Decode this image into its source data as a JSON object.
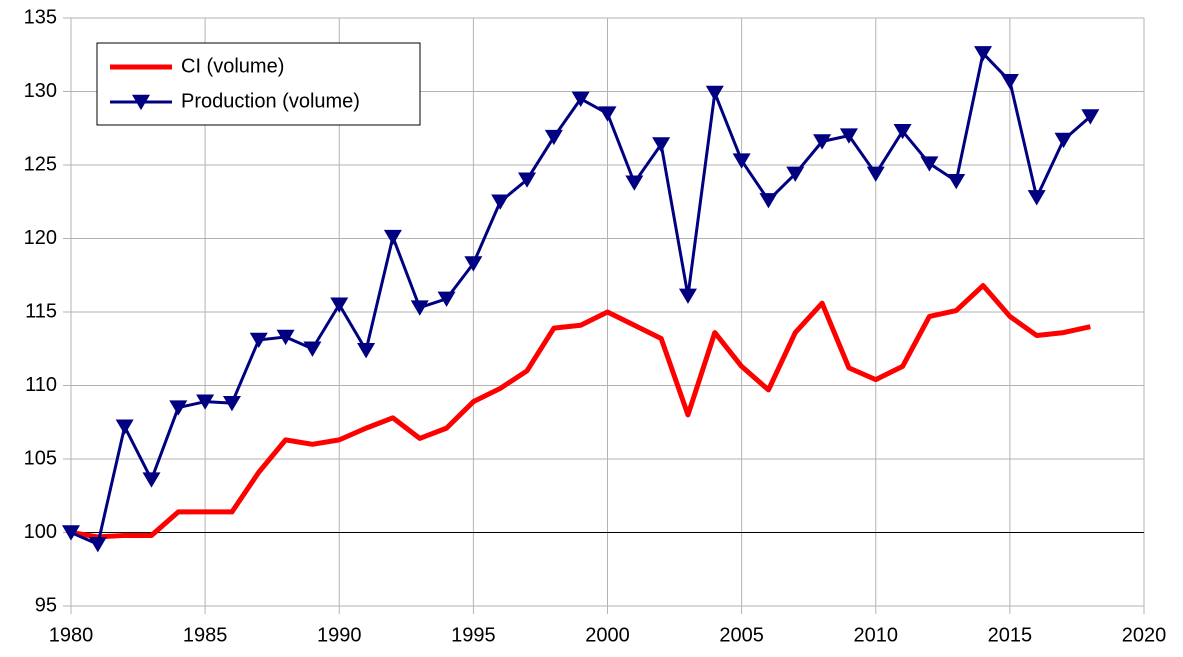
{
  "chart_data": {
    "type": "line",
    "x": [
      1980,
      1981,
      1982,
      1983,
      1984,
      1985,
      1986,
      1987,
      1988,
      1989,
      1990,
      1991,
      1992,
      1993,
      1994,
      1995,
      1996,
      1997,
      1998,
      1999,
      2000,
      2001,
      2002,
      2003,
      2004,
      2005,
      2006,
      2007,
      2008,
      2009,
      2010,
      2011,
      2012,
      2013,
      2014,
      2015,
      2016,
      2017,
      2018
    ],
    "series": [
      {
        "name": "CI (volume)",
        "color": "#ff0000",
        "marker": "none",
        "values": [
          100,
          99.7,
          99.8,
          99.8,
          101.4,
          101.4,
          101.4,
          104.1,
          106.3,
          106,
          106.3,
          107.1,
          107.8,
          106.4,
          107.1,
          108.9,
          109.8,
          111,
          113.9,
          114.1,
          115,
          114.1,
          113.2,
          108,
          113.6,
          111.3,
          109.7,
          113.6,
          115.6,
          111.2,
          110.4,
          111.3,
          114.7,
          115.1,
          116.8,
          114.7,
          113.4,
          113.6,
          114
        ]
      },
      {
        "name": "Production (volume)",
        "color": "#000080",
        "marker": "triangle-down",
        "values": [
          100,
          99.2,
          107.2,
          103.6,
          108.5,
          108.9,
          108.8,
          113.1,
          113.3,
          112.5,
          115.5,
          112.4,
          120.1,
          115.3,
          115.9,
          118.3,
          122.5,
          124,
          126.9,
          129.5,
          128.5,
          123.8,
          126.4,
          116.1,
          129.9,
          125.3,
          122.6,
          124.4,
          126.6,
          127,
          124.4,
          127.3,
          125.1,
          123.9,
          132.6,
          130.7,
          122.8,
          126.7,
          128.3
        ]
      }
    ],
    "xlim": [
      1980,
      2020
    ],
    "xticks": [
      1980,
      1985,
      1990,
      1995,
      2000,
      2005,
      2010,
      2015,
      2020
    ],
    "ylim": [
      95,
      135
    ],
    "yticks": [
      95,
      100,
      105,
      110,
      115,
      120,
      125,
      130,
      135
    ],
    "x_axis_at": 100,
    "grid": true,
    "legend": "top-left"
  }
}
